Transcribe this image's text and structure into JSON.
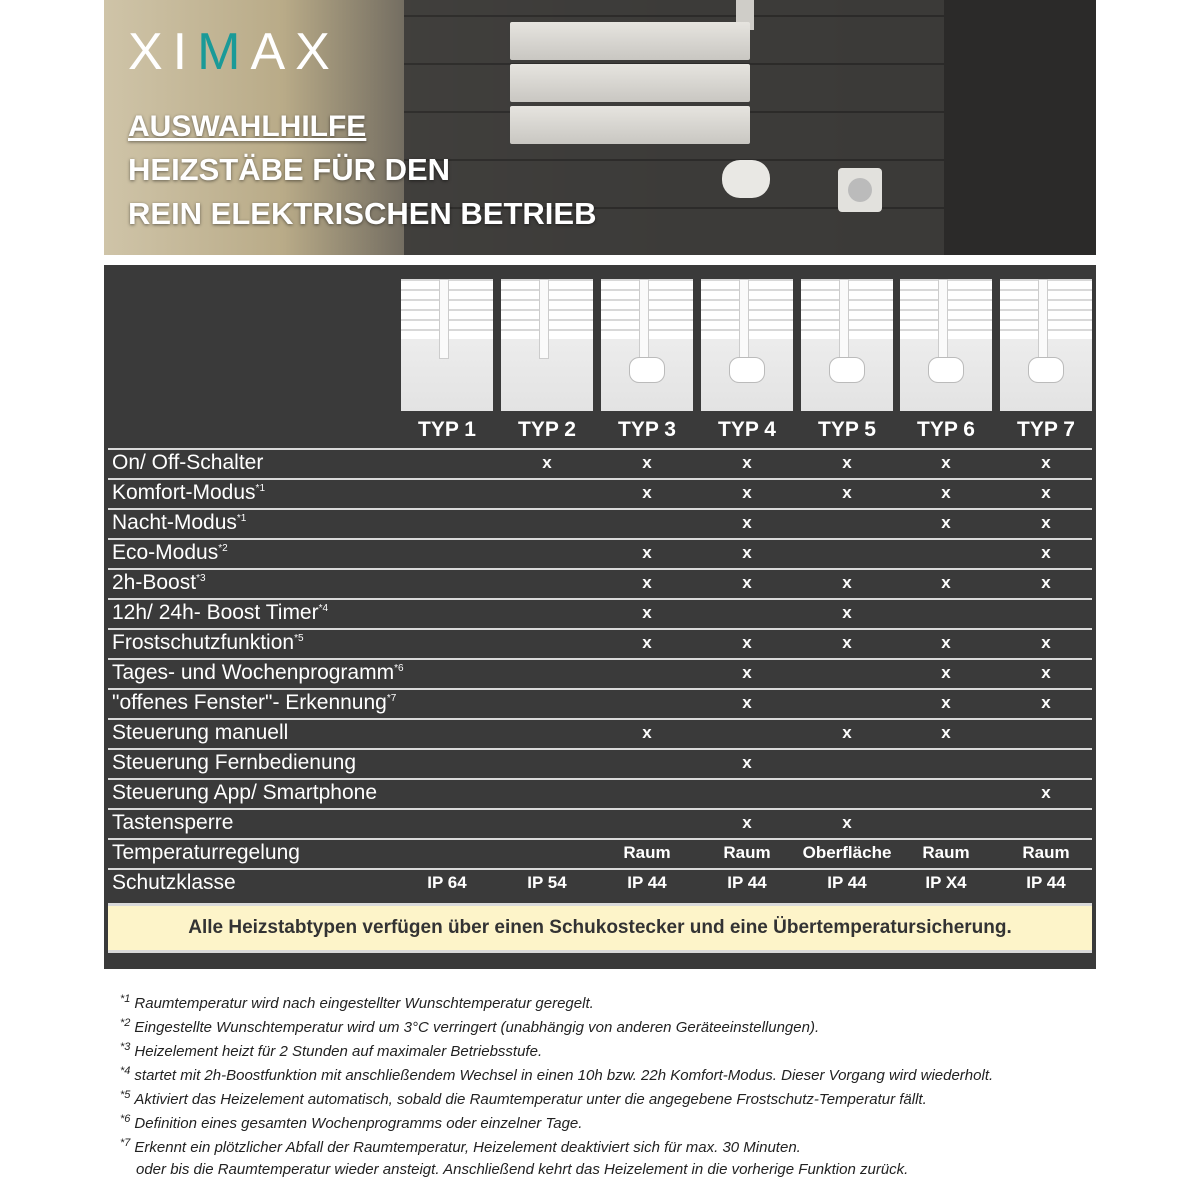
{
  "header": {
    "logo": "XIMAX",
    "title_line1": "AUSWAHLHILFE",
    "title_line2": "HEIZSTÄBE FÜR DEN",
    "title_line3": "REIN ELEKTRISCHEN BETRIEB"
  },
  "types": [
    "TYP 1",
    "TYP 2",
    "TYP 3",
    "TYP 4",
    "TYP 5",
    "TYP 6",
    "TYP 7"
  ],
  "rows": [
    {
      "label": "On/ Off-Schalter",
      "note": "",
      "values": [
        "",
        "x",
        "x",
        "x",
        "x",
        "x",
        "x"
      ]
    },
    {
      "label": "Komfort-Modus",
      "note": "*1",
      "values": [
        "",
        "",
        "x",
        "x",
        "x",
        "x",
        "x"
      ]
    },
    {
      "label": "Nacht-Modus",
      "note": "*1",
      "values": [
        "",
        "",
        "",
        "x",
        "",
        "x",
        "x"
      ]
    },
    {
      "label": "Eco-Modus",
      "note": "*2",
      "values": [
        "",
        "",
        "x",
        "x",
        "",
        "",
        "x"
      ]
    },
    {
      "label": "2h-Boost",
      "note": "*3",
      "values": [
        "",
        "",
        "x",
        "x",
        "x",
        "x",
        "x"
      ]
    },
    {
      "label": "12h/ 24h- Boost Timer",
      "note": "*4",
      "values": [
        "",
        "",
        "x",
        "",
        "x",
        "",
        ""
      ]
    },
    {
      "label": "Frostschutzfunktion",
      "note": "*5",
      "values": [
        "",
        "",
        "x",
        "x",
        "x",
        "x",
        "x"
      ]
    },
    {
      "label": "Tages- und Wochenprogramm",
      "note": "*6",
      "values": [
        "",
        "",
        "",
        "x",
        "",
        "x",
        "x"
      ]
    },
    {
      "label": "\"offenes Fenster\"- Erkennung",
      "note": "*7",
      "values": [
        "",
        "",
        "",
        "x",
        "",
        "x",
        "x"
      ]
    },
    {
      "label": "Steuerung manuell",
      "note": "",
      "values": [
        "",
        "",
        "x",
        "",
        "x",
        "x",
        ""
      ]
    },
    {
      "label": "Steuerung Fernbedienung",
      "note": "",
      "values": [
        "",
        "",
        "",
        "x",
        "",
        "",
        ""
      ]
    },
    {
      "label": "Steuerung App/ Smartphone",
      "note": "",
      "values": [
        "",
        "",
        "",
        "",
        "",
        "",
        "x"
      ]
    },
    {
      "label": "Tastensperre",
      "note": "",
      "values": [
        "",
        "",
        "",
        "x",
        "x",
        "",
        ""
      ]
    },
    {
      "label": "Temperaturregelung",
      "note": "",
      "values": [
        "",
        "",
        "Raum",
        "Raum",
        "Oberfläche",
        "Raum",
        "Raum"
      ]
    },
    {
      "label": "Schutzklasse",
      "note": "",
      "values": [
        "IP 64",
        "IP 54",
        "IP 44",
        "IP 44",
        "IP 44",
        "IP X4",
        "IP 44"
      ]
    }
  ],
  "note": "Alle Heizstabtypen verfügen über einen Schukostecker und eine Übertemperatursicherung.",
  "footnotes": [
    {
      "mark": "*1",
      "text": "Raumtemperatur wird nach eingestellter Wunschtemperatur geregelt."
    },
    {
      "mark": "*2",
      "text": "Eingestellte Wunschtemperatur wird um 3°C verringert (unabhängig von anderen Geräteeinstellungen)."
    },
    {
      "mark": "*3",
      "text": "Heizelement heizt für 2 Stunden auf maximaler Betriebsstufe."
    },
    {
      "mark": "*4",
      "text": "startet mit 2h-Boostfunktion mit anschließendem Wechsel in einen 10h bzw. 22h Komfort-Modus. Dieser Vorgang wird wiederholt."
    },
    {
      "mark": "*5",
      "text": "Aktiviert das Heizelement automatisch, sobald die Raumtemperatur unter die angegebene Frostschutz-Temperatur fällt."
    },
    {
      "mark": "*6",
      "text": "Definition eines gesamten Wochenprogramms oder einzelner Tage."
    },
    {
      "mark": "*7",
      "text": "Erkennt ein plötzlicher Abfall der Raumtemperatur, Heizelement deaktiviert sich für max. 30 Minuten."
    },
    {
      "mark": "",
      "text": "oder bis die Raumtemperatur wieder ansteigt. Anschließend kehrt das Heizelement in die vorherige Funktion zurück."
    }
  ],
  "colors": {
    "panel": "#3a3a3a",
    "note_bg": "#fdf4c9",
    "logo_accent": "#1a9a98"
  }
}
